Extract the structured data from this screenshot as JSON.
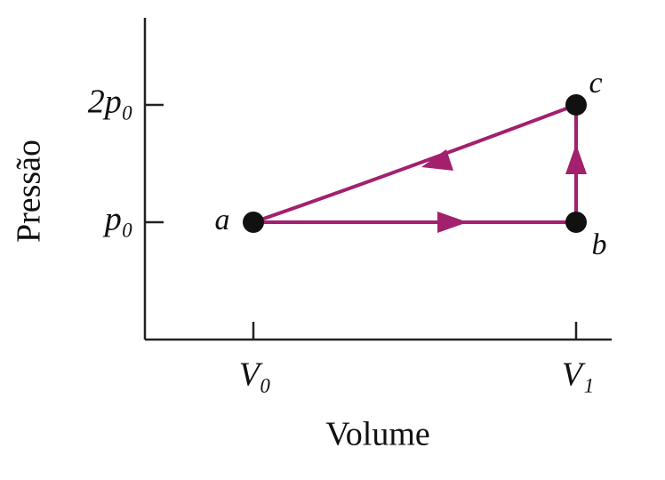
{
  "axes": {
    "x_label": "Volume",
    "y_label": "Pressão",
    "x_ticks": [
      "V₀",
      "V₁"
    ],
    "y_ticks": [
      "2p₀",
      "p₀"
    ]
  },
  "points": [
    {
      "label": "a"
    },
    {
      "label": "b"
    },
    {
      "label": "c"
    }
  ]
}
